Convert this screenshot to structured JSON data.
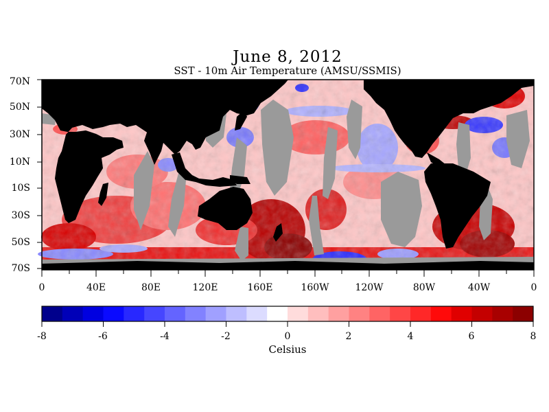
{
  "header": {
    "title": "June 8, 2012",
    "subtitle": "SST - 10m Air Temperature (AMSU/SSMIS)"
  },
  "map": {
    "lat_labels": [
      "70N",
      "50N",
      "30N",
      "10N",
      "10S",
      "30S",
      "50S",
      "70S"
    ],
    "lon_labels": [
      "0",
      "40E",
      "80E",
      "120E",
      "160E",
      "160W",
      "120W",
      "80W",
      "40W",
      "0"
    ],
    "land_color": "#000000",
    "no_data_color": "#9a9a9a"
  },
  "colorbar": {
    "title": "Celsius",
    "min": -8,
    "max": 8,
    "tick_labels": [
      "-8",
      "-6",
      "-4",
      "-2",
      "0",
      "2",
      "4",
      "6",
      "8"
    ],
    "colors": [
      "#00008c",
      "#0000b8",
      "#0000e0",
      "#0a0aff",
      "#2828ff",
      "#4646ff",
      "#6464ff",
      "#8282ff",
      "#a0a0ff",
      "#bebeff",
      "#dcdcff",
      "#ffffff",
      "#ffdcdc",
      "#ffbebe",
      "#ffa0a0",
      "#ff8282",
      "#ff6464",
      "#ff4646",
      "#ff2828",
      "#ff0a0a",
      "#e00000",
      "#c40000",
      "#a80000",
      "#8c0000"
    ]
  }
}
